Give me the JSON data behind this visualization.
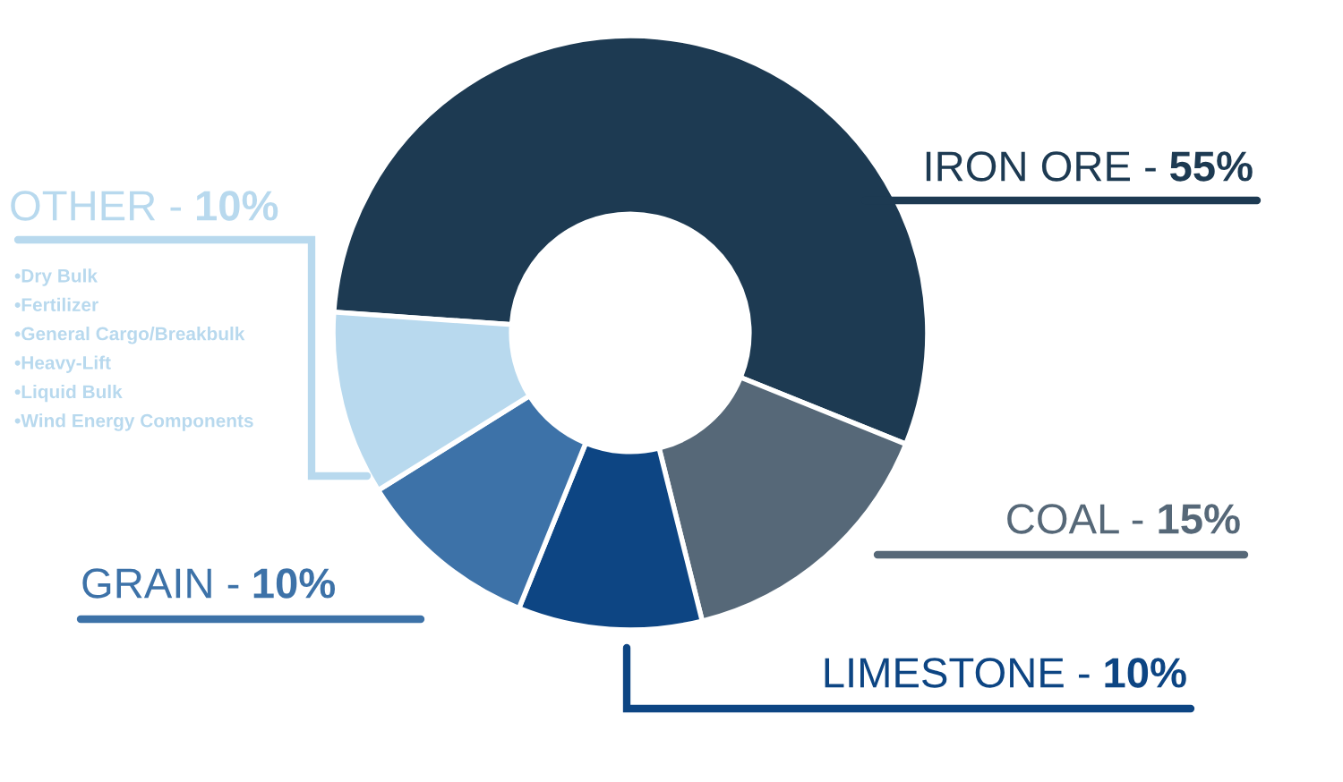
{
  "chart_data": {
    "type": "donut",
    "categories": [
      "IRON ORE -",
      "COAL -",
      "LIMESTONE -",
      "GRAIN -",
      "OTHER -"
    ],
    "values": [
      55,
      15,
      10,
      10,
      10
    ],
    "value_labels": [
      "55%",
      "15%",
      "10%",
      "10%",
      "10%"
    ],
    "colors": [
      "#1d3a52",
      "#566878",
      "#0d4583",
      "#3d72a8",
      "#b8d9ee"
    ],
    "annotations": [
      "•Dry Bulk",
      "•Fertilizer",
      "•General Cargo/Breakbulk",
      "•Heavy-Lift",
      "•Liquid Bulk",
      "•Wind Energy Components"
    ],
    "legend": false
  }
}
